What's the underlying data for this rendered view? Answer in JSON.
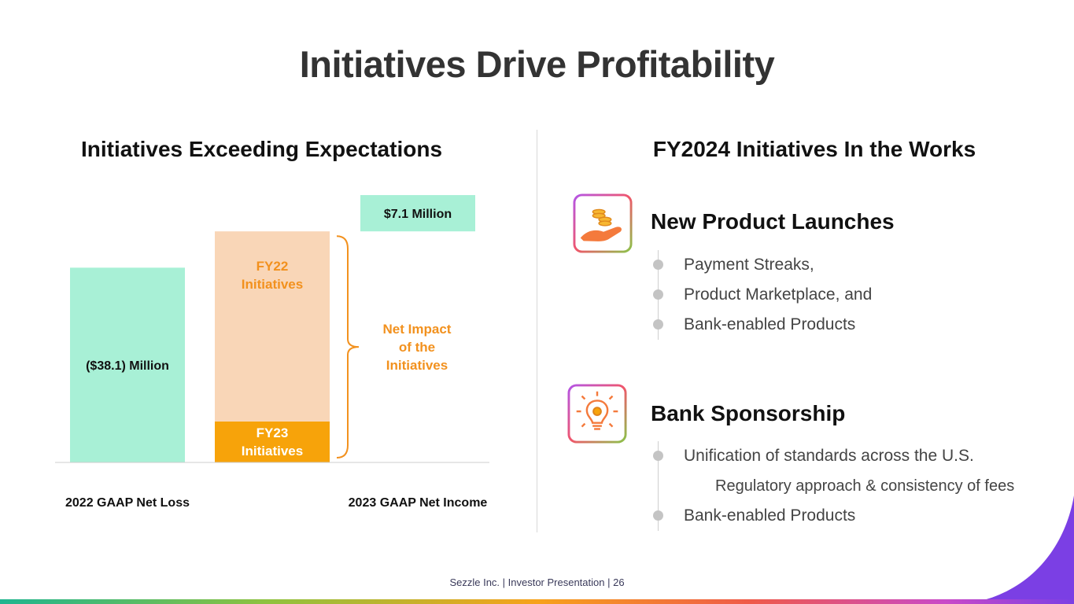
{
  "page": {
    "title": "Initiatives Drive Profitability",
    "footer": "Sezzle Inc. | Investor Presentation | 26"
  },
  "left": {
    "heading": "Initiatives Exceeding Expectations"
  },
  "chart_data": {
    "type": "bar",
    "subtype": "waterfall",
    "title": "Initiatives Exceeding Expectations",
    "unit": "$M",
    "categories": [
      "2022 GAAP Net Loss",
      "",
      "2023 GAAP Net Income"
    ],
    "bars": [
      {
        "name": "2022 GAAP Net Loss",
        "label": "($38.1) Million",
        "value": -38.1,
        "color": "#a8f0d6"
      },
      {
        "name": "FY23 Initiatives",
        "label_lines": [
          "FY23",
          "Initiatives"
        ],
        "value": 8.0,
        "color": "#f7a30a",
        "note": "approx."
      },
      {
        "name": "FY22 Initiatives",
        "label_lines": [
          "FY22",
          "Initiatives"
        ],
        "value": 37.2,
        "color": "#f9d6b7",
        "note": "approx."
      },
      {
        "name": "2023 GAAP Net Income",
        "label": "$7.1 Million",
        "value": 7.1,
        "color": "#a8f0d6"
      }
    ],
    "annotation": {
      "lines": [
        "Net Impact",
        "of the",
        "Initiatives"
      ],
      "color": "#f2911e"
    },
    "x_labels": [
      "2022 GAAP Net Loss",
      "2023 GAAP Net Income"
    ],
    "grid": false,
    "legend": "none"
  },
  "right": {
    "heading": "FY2024 Initiatives In the Works",
    "sections": [
      {
        "title": "New Product Launches",
        "icon": "hand-coins-icon",
        "bullets": [
          {
            "text": "Payment Streaks,",
            "sub": false
          },
          {
            "text": "Product Marketplace, and",
            "sub": false
          },
          {
            "text": "Bank-enabled Products",
            "sub": false
          }
        ]
      },
      {
        "title": "Bank Sponsorship",
        "icon": "lightbulb-gear-icon",
        "bullets": [
          {
            "text": "Unification of standards across the U.S.",
            "sub": false
          },
          {
            "text": "Regulatory approach & consistency of fees",
            "sub": true
          },
          {
            "text": "Bank-enabled Products",
            "sub": false
          }
        ]
      }
    ]
  },
  "colors": {
    "mint": "#a8f0d6",
    "peach": "#f9d6b7",
    "orange": "#f7a30a",
    "annotation_orange": "#f2911e",
    "swoosh_purple": "#7b3fe4"
  }
}
